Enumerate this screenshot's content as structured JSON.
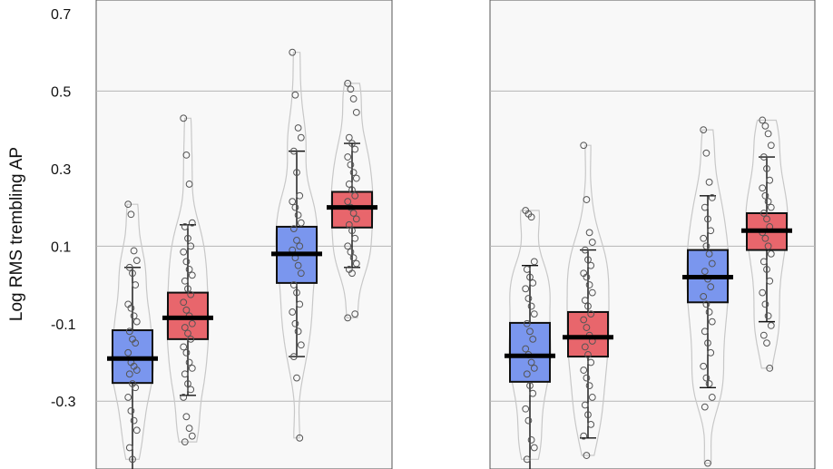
{
  "chart_data": {
    "type": "box",
    "ylabel": "Log RMS trembling AP",
    "ylim": [
      -0.475,
      0.735
    ],
    "yticks": [
      0.7,
      0.5,
      0.3,
      0.1,
      -0.1,
      -0.3
    ],
    "ytick_labels": [
      "0.7",
      "0.5",
      "0.3",
      "0.1",
      "-0.1",
      "-0.3"
    ],
    "gridlines": [
      0.5,
      0.1,
      -0.3
    ],
    "colors": {
      "blue": "#7a96ee",
      "red": "#e8666c",
      "violin": "#c8c8c8",
      "panel_bg": "#f8f8f8"
    },
    "panels": [
      {
        "boxes": [
          {
            "color": "blue",
            "q1": -0.253,
            "median": -0.19,
            "q3": -0.117,
            "whisker_low": -0.475,
            "whisker_high": 0.045,
            "points": [
              0.208,
              0.182,
              0.088,
              0.063,
              0.045,
              0.03,
              0.0,
              -0.05,
              -0.06,
              -0.08,
              -0.095,
              -0.12,
              -0.14,
              -0.15,
              -0.175,
              -0.2,
              -0.21,
              -0.22,
              -0.23,
              -0.255,
              -0.265,
              -0.29,
              -0.325,
              -0.35,
              -0.375,
              -0.42,
              -0.45
            ]
          },
          {
            "color": "red",
            "q1": -0.14,
            "median": -0.085,
            "q3": -0.02,
            "whisker_low": -0.285,
            "whisker_high": 0.155,
            "points": [
              0.43,
              0.335,
              0.26,
              0.16,
              0.15,
              0.12,
              0.1,
              0.085,
              0.06,
              0.04,
              0.025,
              0.01,
              -0.01,
              -0.025,
              -0.045,
              -0.065,
              -0.08,
              -0.1,
              -0.11,
              -0.125,
              -0.14,
              -0.16,
              -0.175,
              -0.2,
              -0.215,
              -0.23,
              -0.255,
              -0.27,
              -0.29,
              -0.34,
              -0.37,
              -0.39,
              -0.405
            ]
          },
          {
            "color": "blue",
            "q1": 0.005,
            "median": 0.08,
            "q3": 0.15,
            "whisker_low": -0.185,
            "whisker_high": 0.345,
            "points": [
              0.6,
              0.49,
              0.405,
              0.38,
              0.345,
              0.29,
              0.23,
              0.215,
              0.2,
              0.18,
              0.16,
              0.145,
              0.115,
              0.1,
              0.09,
              0.07,
              0.05,
              0.03,
              0.0,
              -0.02,
              -0.05,
              -0.07,
              -0.1,
              -0.12,
              -0.155,
              -0.185,
              -0.24,
              -0.395
            ]
          },
          {
            "color": "red",
            "q1": 0.148,
            "median": 0.2,
            "q3": 0.24,
            "whisker_low": 0.045,
            "whisker_high": 0.365,
            "points": [
              0.52,
              0.505,
              0.48,
              0.445,
              0.38,
              0.365,
              0.35,
              0.33,
              0.31,
              0.29,
              0.275,
              0.26,
              0.245,
              0.23,
              0.215,
              0.2,
              0.185,
              0.17,
              0.155,
              0.14,
              0.12,
              0.1,
              0.085,
              0.07,
              0.055,
              0.04,
              0.03,
              -0.075,
              -0.085
            ]
          }
        ]
      },
      {
        "boxes": [
          {
            "color": "blue",
            "q1": -0.25,
            "median": -0.183,
            "q3": -0.098,
            "whisker_low": -0.475,
            "whisker_high": 0.05,
            "points": [
              0.192,
              0.183,
              0.175,
              0.06,
              0.04,
              0.02,
              0.005,
              -0.01,
              -0.035,
              -0.055,
              -0.075,
              -0.1,
              -0.12,
              -0.14,
              -0.165,
              -0.18,
              -0.2,
              -0.215,
              -0.23,
              -0.26,
              -0.28,
              -0.32,
              -0.35,
              -0.4,
              -0.42,
              -0.45
            ]
          },
          {
            "color": "red",
            "q1": -0.185,
            "median": -0.135,
            "q3": -0.07,
            "whisker_low": -0.395,
            "whisker_high": 0.09,
            "points": [
              0.36,
              0.22,
              0.135,
              0.11,
              0.09,
              0.065,
              0.05,
              0.03,
              0.02,
              0.0,
              -0.02,
              -0.04,
              -0.055,
              -0.075,
              -0.09,
              -0.11,
              -0.13,
              -0.145,
              -0.16,
              -0.18,
              -0.2,
              -0.22,
              -0.24,
              -0.26,
              -0.29,
              -0.31,
              -0.335,
              -0.36,
              -0.39,
              -0.44
            ]
          },
          {
            "color": "blue",
            "q1": -0.045,
            "median": 0.02,
            "q3": 0.09,
            "whisker_low": -0.265,
            "whisker_high": 0.23,
            "points": [
              0.4,
              0.34,
              0.265,
              0.225,
              0.2,
              0.17,
              0.14,
              0.12,
              0.1,
              0.08,
              0.055,
              0.035,
              0.015,
              -0.005,
              -0.03,
              -0.05,
              -0.07,
              -0.095,
              -0.12,
              -0.15,
              -0.175,
              -0.21,
              -0.24,
              -0.255,
              -0.29,
              -0.315,
              -0.46
            ]
          },
          {
            "color": "red",
            "q1": 0.09,
            "median": 0.14,
            "q3": 0.185,
            "whisker_low": -0.095,
            "whisker_high": 0.33,
            "points": [
              0.425,
              0.41,
              0.39,
              0.36,
              0.33,
              0.3,
              0.27,
              0.25,
              0.23,
              0.215,
              0.2,
              0.185,
              0.17,
              0.15,
              0.135,
              0.12,
              0.1,
              0.08,
              0.06,
              0.04,
              0.01,
              -0.02,
              -0.05,
              -0.08,
              -0.105,
              -0.13,
              -0.15,
              -0.215
            ]
          }
        ]
      }
    ]
  }
}
